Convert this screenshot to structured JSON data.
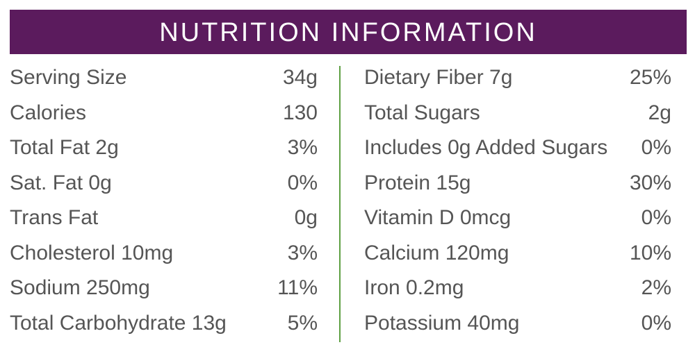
{
  "header": {
    "title": "NUTRITION INFORMATION"
  },
  "left": {
    "rows": [
      [
        "Serving Size",
        "34g"
      ],
      [
        "Calories",
        "130"
      ],
      [
        "Total Fat 2g",
        "3%"
      ],
      [
        "Sat. Fat 0g",
        "0%"
      ],
      [
        "Trans Fat",
        "0g"
      ],
      [
        "Cholesterol 10mg",
        "3%"
      ],
      [
        "Sodium 250mg",
        "11%"
      ],
      [
        "Total Carbohydrate 13g",
        "5%"
      ]
    ]
  },
  "right": {
    "rows": [
      [
        "Dietary Fiber 7g",
        "25%"
      ],
      [
        "Total Sugars",
        "2g"
      ],
      [
        "Includes 0g Added Sugars",
        "0%"
      ],
      [
        "Protein 15g",
        "30%"
      ],
      [
        "Vitamin D 0mcg",
        "0%"
      ],
      [
        "Calcium 120mg",
        "10%"
      ],
      [
        "Iron 0.2mg",
        "2%"
      ],
      [
        "Potassium 40mg",
        "0%"
      ]
    ]
  }
}
